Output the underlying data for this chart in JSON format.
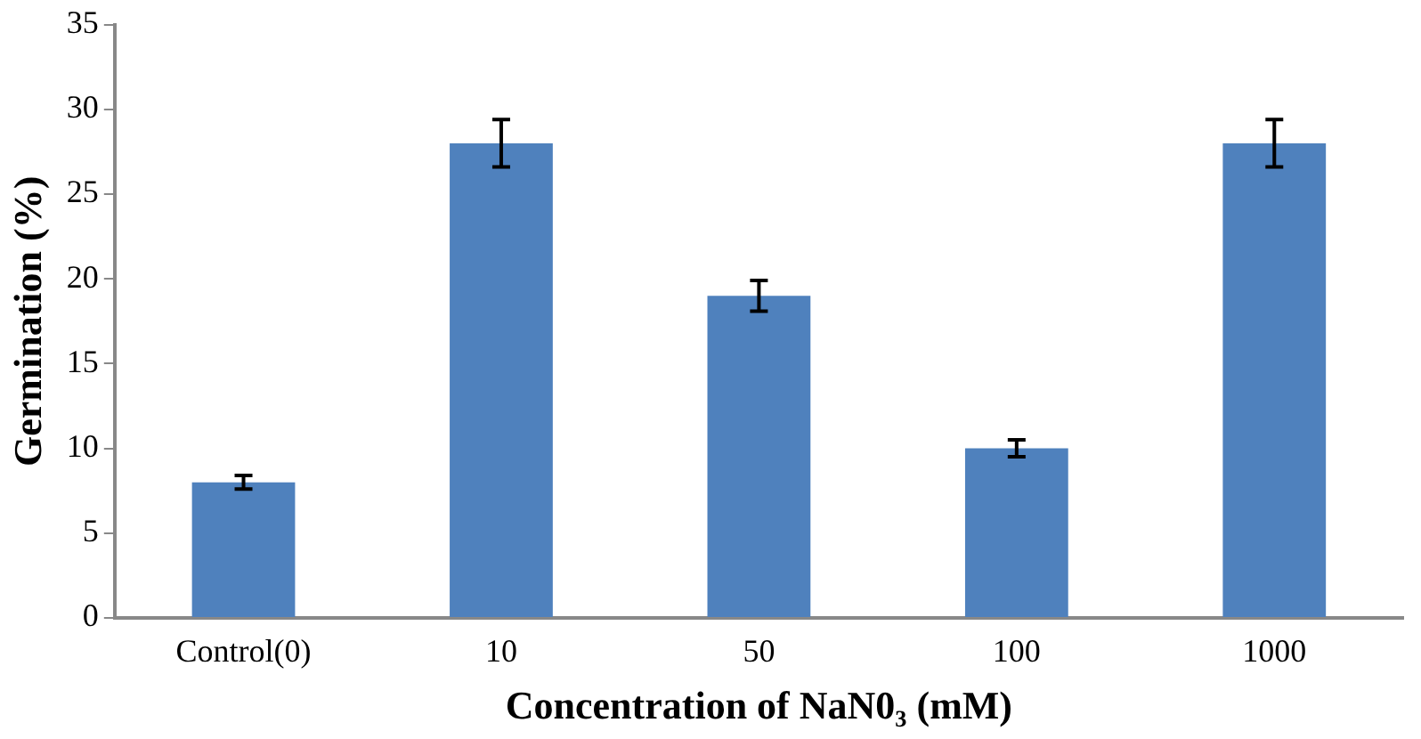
{
  "chart_data": {
    "type": "bar",
    "xlabel": "Concentration of NaN0₃ (mM)",
    "ylabel": "Germination (%)",
    "categories": [
      "Control(0)",
      "10",
      "50",
      "100",
      "1000"
    ],
    "values": [
      8,
      28,
      19,
      10,
      28
    ],
    "errors": [
      0.4,
      1.4,
      0.9,
      0.5,
      1.4
    ],
    "color": "#4f81bd",
    "ylim": [
      0,
      35
    ],
    "yticks": [
      0,
      5,
      10,
      15,
      20,
      25,
      30,
      35
    ],
    "grid": false,
    "legend": false
  }
}
